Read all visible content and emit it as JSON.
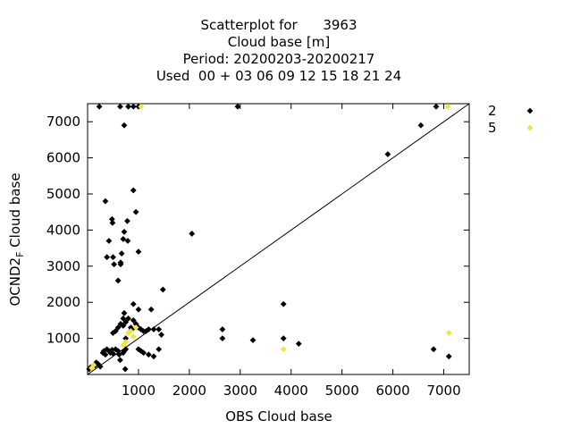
{
  "chart_data": {
    "type": "scatter",
    "title_lines": [
      "Scatterplot for      3963",
      "Cloud base [m]",
      "Period: 20200203-20200217",
      "Used  00 + 03 06 09 12 15 18 21 24"
    ],
    "xlabel": "OBS Cloud base",
    "ylabel_main": "OCND2",
    "ylabel_sub": "F",
    "ylabel_rest": " Cloud base",
    "xlim": [
      0,
      7500
    ],
    "ylim": [
      0,
      7500
    ],
    "xticks": [
      1000,
      2000,
      3000,
      4000,
      5000,
      6000,
      7000
    ],
    "yticks": [
      1000,
      2000,
      3000,
      4000,
      5000,
      6000,
      7000
    ],
    "diagonal": true,
    "grid": false,
    "legend_position": "outside-right",
    "series": [
      {
        "name": "2",
        "color": "#000000",
        "points": [
          [
            30,
            150
          ],
          [
            60,
            200
          ],
          [
            150,
            250
          ],
          [
            170,
            330
          ],
          [
            200,
            300
          ],
          [
            250,
            220
          ],
          [
            230,
            7420
          ],
          [
            300,
            600
          ],
          [
            320,
            650
          ],
          [
            350,
            550
          ],
          [
            380,
            700
          ],
          [
            420,
            650
          ],
          [
            450,
            600
          ],
          [
            480,
            680
          ],
          [
            500,
            580
          ],
          [
            550,
            700
          ],
          [
            600,
            650
          ],
          [
            620,
            550
          ],
          [
            640,
            400
          ],
          [
            700,
            600
          ],
          [
            720,
            650
          ],
          [
            750,
            700
          ],
          [
            500,
            1150
          ],
          [
            550,
            1200
          ],
          [
            600,
            1300
          ],
          [
            650,
            1400
          ],
          [
            700,
            1350
          ],
          [
            750,
            1450
          ],
          [
            800,
            1550
          ],
          [
            850,
            1300
          ],
          [
            870,
            1250
          ],
          [
            900,
            1500
          ],
          [
            950,
            1400
          ],
          [
            1000,
            1300
          ],
          [
            1050,
            1250
          ],
          [
            1100,
            1200
          ],
          [
            1150,
            1200
          ],
          [
            1200,
            1250
          ],
          [
            1250,
            1800
          ],
          [
            1300,
            1250
          ],
          [
            1400,
            1250
          ],
          [
            1450,
            1100
          ],
          [
            1480,
            2350
          ],
          [
            1000,
            1800
          ],
          [
            900,
            1950
          ],
          [
            700,
            1550
          ],
          [
            720,
            1700
          ],
          [
            750,
            1000
          ],
          [
            1000,
            700
          ],
          [
            1050,
            650
          ],
          [
            1100,
            600
          ],
          [
            1200,
            550
          ],
          [
            1300,
            500
          ],
          [
            1400,
            700
          ],
          [
            740,
            150
          ],
          [
            350,
            4800
          ],
          [
            380,
            3250
          ],
          [
            420,
            3700
          ],
          [
            480,
            4300
          ],
          [
            490,
            4200
          ],
          [
            500,
            3250
          ],
          [
            520,
            3050
          ],
          [
            600,
            2600
          ],
          [
            650,
            3100
          ],
          [
            650,
            3050
          ],
          [
            670,
            3350
          ],
          [
            700,
            3750
          ],
          [
            720,
            3950
          ],
          [
            780,
            4250
          ],
          [
            790,
            3700
          ],
          [
            900,
            5100
          ],
          [
            950,
            4500
          ],
          [
            1000,
            3400
          ],
          [
            640,
            7420
          ],
          [
            720,
            6900
          ],
          [
            800,
            7420
          ],
          [
            900,
            7420
          ],
          [
            1000,
            7420
          ],
          [
            2050,
            3900
          ],
          [
            2650,
            1250
          ],
          [
            2650,
            1000
          ],
          [
            2950,
            7420
          ],
          [
            3250,
            950
          ],
          [
            3850,
            1950
          ],
          [
            3850,
            1000
          ],
          [
            4150,
            850
          ],
          [
            5900,
            6100
          ],
          [
            6550,
            6900
          ],
          [
            6800,
            700
          ],
          [
            6850,
            7420
          ],
          [
            7100,
            500
          ]
        ]
      },
      {
        "name": "5",
        "color": "#f0e442",
        "points": [
          [
            80,
            180
          ],
          [
            120,
            260
          ],
          [
            750,
            900
          ],
          [
            800,
            1150
          ],
          [
            850,
            1200
          ],
          [
            700,
            800
          ],
          [
            900,
            1050
          ],
          [
            950,
            1300
          ],
          [
            1050,
            7420
          ],
          [
            3850,
            700
          ],
          [
            7080,
            7420
          ],
          [
            7100,
            1150
          ]
        ]
      }
    ]
  }
}
